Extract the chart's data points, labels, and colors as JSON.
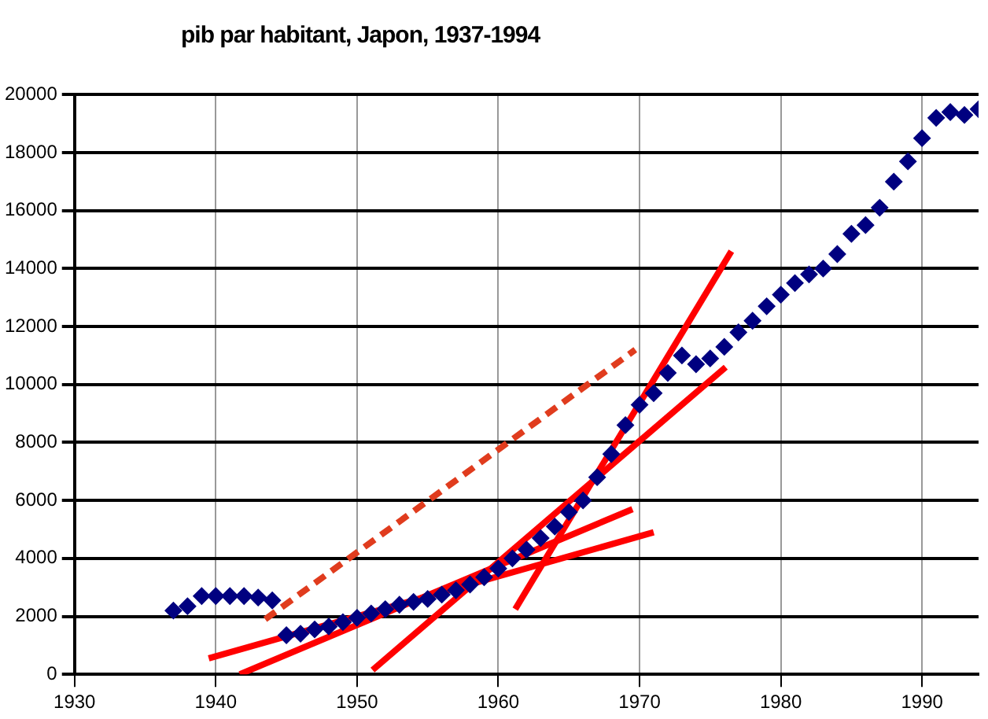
{
  "chart_data": {
    "type": "scatter",
    "title": "pib par habitant, Japon, 1937-1994",
    "xlim": [
      1930,
      1994
    ],
    "xticks": [
      1930,
      1940,
      1950,
      1960,
      1970,
      1980,
      1990
    ],
    "ylim": [
      0,
      20000
    ],
    "yticks": [
      0,
      2000,
      4000,
      6000,
      8000,
      10000,
      12000,
      14000,
      16000,
      18000,
      20000
    ],
    "grid": true,
    "legend": false,
    "series": [
      {
        "type": "scatter",
        "color": "#000080",
        "marker": "diamond",
        "x": [
          1937,
          1938,
          1939,
          1940,
          1941,
          1942,
          1943,
          1944,
          1945,
          1946,
          1947,
          1948,
          1949,
          1950,
          1951,
          1952,
          1953,
          1954,
          1955,
          1956,
          1957,
          1958,
          1959,
          1960,
          1961,
          1962,
          1963,
          1964,
          1965,
          1966,
          1967,
          1968,
          1969,
          1970,
          1971,
          1972,
          1973,
          1974,
          1975,
          1976,
          1977,
          1978,
          1979,
          1980,
          1981,
          1982,
          1983,
          1984,
          1985,
          1986,
          1987,
          1988,
          1989,
          1990,
          1991,
          1992,
          1993,
          1994
        ],
        "values": [
          2200,
          2350,
          2700,
          2700,
          2700,
          2700,
          2650,
          2550,
          1350,
          1400,
          1550,
          1650,
          1800,
          1950,
          2100,
          2250,
          2400,
          2500,
          2600,
          2750,
          2900,
          3100,
          3350,
          3650,
          4000,
          4300,
          4700,
          5100,
          5600,
          6000,
          6800,
          7600,
          8600,
          9300,
          9700,
          10400,
          11000,
          10700,
          10900,
          11300,
          11800,
          12200,
          12700,
          13100,
          13500,
          13800,
          14000,
          14500,
          15200,
          15500,
          16100,
          17000,
          17700,
          18500,
          19200,
          19400,
          19300,
          19500
        ]
      },
      {
        "type": "line",
        "color": "#ff0000",
        "marker": "none",
        "line_style": "solid",
        "x": [
          1939.5,
          1971
        ],
        "values": [
          550,
          4900
        ]
      },
      {
        "type": "line",
        "color": "#ff0000",
        "marker": "none",
        "line_style": "solid",
        "x": [
          1941.7,
          1969.5
        ],
        "values": [
          0,
          5700
        ]
      },
      {
        "type": "line",
        "color": "#ff0000",
        "marker": "none",
        "line_style": "solid",
        "x": [
          1951.1,
          1976.1
        ],
        "values": [
          150,
          10600
        ]
      },
      {
        "type": "line",
        "color": "#ff0000",
        "marker": "none",
        "line_style": "solid",
        "x": [
          1961.2,
          1976.5
        ],
        "values": [
          2250,
          14600
        ]
      },
      {
        "type": "line",
        "color": "#e03c1e",
        "marker": "none",
        "line_style": "dashed",
        "x": [
          1943.5,
          1969.7
        ],
        "values": [
          1900,
          11200
        ]
      }
    ]
  }
}
